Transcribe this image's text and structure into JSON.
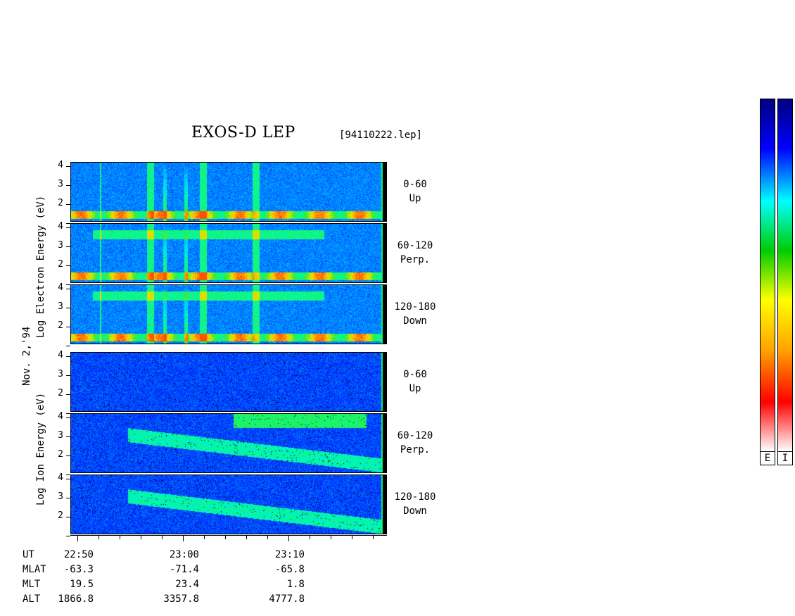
{
  "title": "EXOS-D LEP",
  "file_id": "[94110222.lep]",
  "date_label": "Nov. 2,'94",
  "electron_label": "Log  Electron  Energy (eV)",
  "ion_label": "Log  Ion  Energy (eV)",
  "y_ticks": [
    "4",
    "3",
    "2"
  ],
  "angles": [
    {
      "range": "0-60",
      "dir": "Up"
    },
    {
      "range": "60-120",
      "dir": "Perp."
    },
    {
      "range": "120-180",
      "dir": "Down"
    },
    {
      "range": "0-60",
      "dir": "Up"
    },
    {
      "range": "60-120",
      "dir": "Perp."
    },
    {
      "range": "120-180",
      "dir": "Down"
    }
  ],
  "x_axis": {
    "rows": [
      {
        "name": "UT",
        "values": [
          "22:50",
          "23:00",
          "23:10"
        ]
      },
      {
        "name": "MLAT",
        "values": [
          "-63.3",
          "-71.4",
          "-65.8"
        ]
      },
      {
        "name": "MLT",
        "values": [
          "19.5",
          "23.4",
          "1.8"
        ]
      },
      {
        "name": "ALT",
        "values": [
          "1866.8",
          "3357.8",
          "4777.8"
        ]
      }
    ]
  },
  "colorbar_labels": [
    "E",
    "I"
  ],
  "chart_data": {
    "type": "heatmap",
    "title": "EXOS-D LEP",
    "instrument_file": "[94110222.lep]",
    "date": "Nov. 2,'94",
    "ylabel_electron": "Log Electron Energy (eV)",
    "ylabel_ion": "Log Ion Energy (eV)",
    "ylim": [
      1,
      4.1
    ],
    "y_ticks": [
      2,
      3,
      4
    ],
    "x_ticks_ut": [
      "22:50",
      "23:00",
      "23:10"
    ],
    "panels": [
      {
        "species": "electron",
        "pitch_angle": "0-60",
        "direction": "Up"
      },
      {
        "species": "electron",
        "pitch_angle": "60-120",
        "direction": "Perp."
      },
      {
        "species": "electron",
        "pitch_angle": "120-180",
        "direction": "Down"
      },
      {
        "species": "ion",
        "pitch_angle": "0-60",
        "direction": "Up"
      },
      {
        "species": "ion",
        "pitch_angle": "60-120",
        "direction": "Perp."
      },
      {
        "species": "ion",
        "pitch_angle": "120-180",
        "direction": "Down"
      }
    ],
    "colorscale": [
      "#ffffff",
      "#ff0000",
      "#ffa500",
      "#ffff00",
      "#00cc00",
      "#00ffff",
      "#0000ff",
      "#000080"
    ]
  }
}
